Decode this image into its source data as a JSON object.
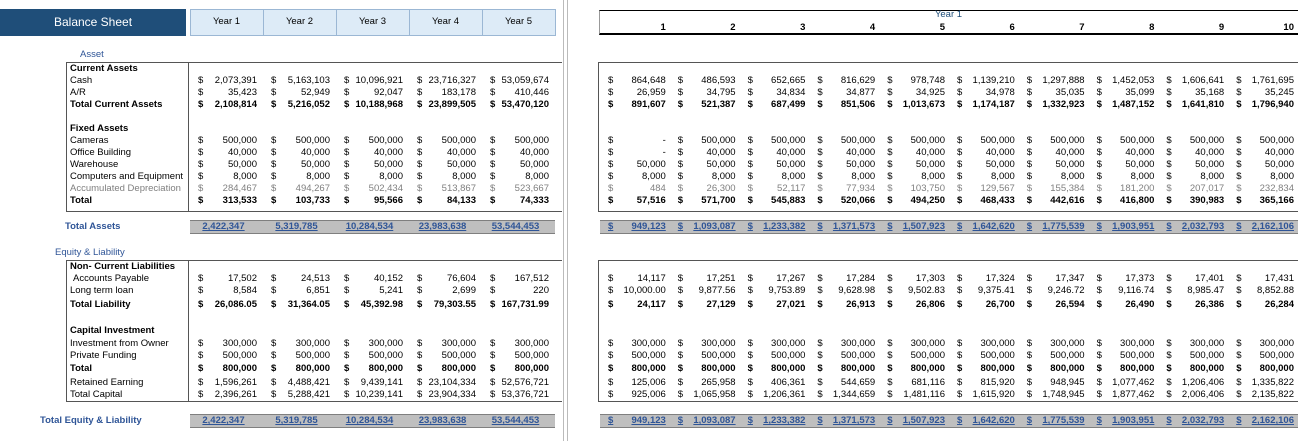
{
  "currency": "$",
  "left": {
    "title": "Balance Sheet",
    "columns": [
      "Year 1",
      "Year 2",
      "Year 3",
      "Year 4",
      "Year 5"
    ],
    "rows": [
      {
        "label": "Asset"
      },
      {
        "label": "Current Assets"
      },
      {
        "label": "Cash",
        "values": [
          "2,073,391",
          "5,163,103",
          "10,096,921",
          "23,716,327",
          "53,059,674"
        ]
      },
      {
        "label": "A/R",
        "values": [
          "35,423",
          "52,949",
          "92,047",
          "183,178",
          "410,446"
        ]
      },
      {
        "label": "Total Current Assets",
        "values": [
          "2,108,814",
          "5,216,052",
          "10,188,968",
          "23,899,505",
          "53,470,120"
        ]
      },
      {
        "label": "Fixed Assets"
      },
      {
        "label": "Cameras",
        "values": [
          "500,000",
          "500,000",
          "500,000",
          "500,000",
          "500,000"
        ]
      },
      {
        "label": "Office Building",
        "values": [
          "40,000",
          "40,000",
          "40,000",
          "40,000",
          "40,000"
        ]
      },
      {
        "label": "Warehouse",
        "values": [
          "50,000",
          "50,000",
          "50,000",
          "50,000",
          "50,000"
        ]
      },
      {
        "label": "Computers and Equipment",
        "values": [
          "8,000",
          "8,000",
          "8,000",
          "8,000",
          "8,000"
        ]
      },
      {
        "label": "Accumulated Depreciation",
        "values": [
          "284,467",
          "494,267",
          "502,434",
          "513,867",
          "523,667"
        ]
      },
      {
        "label": "Total",
        "values": [
          "313,533",
          "103,733",
          "95,566",
          "84,133",
          "74,333"
        ]
      },
      {
        "label": "Total Assets",
        "values": [
          "2,422,347",
          "5,319,785",
          "10,284,534",
          "23,983,638",
          "53,544,453"
        ]
      },
      {
        "label": "Equity & Liability"
      },
      {
        "label": "Non- Current Liabilities"
      },
      {
        "label": "Accounts Payable",
        "values": [
          "17,502",
          "24,513",
          "40,152",
          "76,604",
          "167,512"
        ]
      },
      {
        "label": "Long term loan",
        "values": [
          "8,584",
          "6,851",
          "5,241",
          "2,699",
          "220"
        ]
      },
      {
        "label": "Total Liability",
        "values": [
          "26,086.05",
          "31,364.05",
          "45,392.98",
          "79,303.55",
          "167,731.99"
        ]
      },
      {
        "label": "Capital Investment"
      },
      {
        "label": "Investment from Owner",
        "values": [
          "300,000",
          "300,000",
          "300,000",
          "300,000",
          "300,000"
        ]
      },
      {
        "label": "Private Funding",
        "values": [
          "500,000",
          "500,000",
          "500,000",
          "500,000",
          "500,000"
        ]
      },
      {
        "label": "Total",
        "values": [
          "800,000",
          "800,000",
          "800,000",
          "800,000",
          "800,000"
        ]
      },
      {
        "label": "Retained Earning",
        "values": [
          "1,596,261",
          "4,488,421",
          "9,439,141",
          "23,104,334",
          "52,576,721"
        ]
      },
      {
        "label": "Total Capital",
        "values": [
          "2,396,261",
          "5,288,421",
          "10,239,141",
          "23,904,334",
          "53,376,721"
        ]
      },
      {
        "label": "Total Equity & Liability",
        "values": [
          "2,422,347",
          "5,319,785",
          "10,284,534",
          "23,983,638",
          "53,544,453"
        ]
      }
    ]
  },
  "right": {
    "group": "Year 1",
    "columns": [
      "1",
      "2",
      "3",
      "4",
      "5",
      "6",
      "7",
      "8",
      "9",
      "10"
    ],
    "rows": [
      [
        "864,648",
        "486,593",
        "652,665",
        "816,629",
        "978,748",
        "1,139,210",
        "1,297,888",
        "1,452,053",
        "1,606,641",
        "1,761,695"
      ],
      [
        "26,959",
        "34,795",
        "34,834",
        "34,877",
        "34,925",
        "34,978",
        "35,035",
        "35,099",
        "35,168",
        "35,245"
      ],
      [
        "891,607",
        "521,387",
        "687,499",
        "851,506",
        "1,013,673",
        "1,174,187",
        "1,332,923",
        "1,487,152",
        "1,641,810",
        "1,796,940"
      ],
      [
        "-",
        "500,000",
        "500,000",
        "500,000",
        "500,000",
        "500,000",
        "500,000",
        "500,000",
        "500,000",
        "500,000"
      ],
      [
        "-",
        "40,000",
        "40,000",
        "40,000",
        "40,000",
        "40,000",
        "40,000",
        "40,000",
        "40,000",
        "40,000"
      ],
      [
        "50,000",
        "50,000",
        "50,000",
        "50,000",
        "50,000",
        "50,000",
        "50,000",
        "50,000",
        "50,000",
        "50,000"
      ],
      [
        "8,000",
        "8,000",
        "8,000",
        "8,000",
        "8,000",
        "8,000",
        "8,000",
        "8,000",
        "8,000",
        "8,000"
      ],
      [
        "484",
        "26,300",
        "52,117",
        "77,934",
        "103,750",
        "129,567",
        "155,384",
        "181,200",
        "207,017",
        "232,834"
      ],
      [
        "57,516",
        "571,700",
        "545,883",
        "520,066",
        "494,250",
        "468,433",
        "442,616",
        "416,800",
        "390,983",
        "365,166"
      ],
      [
        "949,123",
        "1,093,087",
        "1,233,382",
        "1,371,573",
        "1,507,923",
        "1,642,620",
        "1,775,539",
        "1,903,951",
        "2,032,793",
        "2,162,106"
      ],
      [
        "14,117",
        "17,251",
        "17,267",
        "17,284",
        "17,303",
        "17,324",
        "17,347",
        "17,373",
        "17,401",
        "17,431"
      ],
      [
        "10,000.00",
        "9,877.56",
        "9,753.89",
        "9,628.98",
        "9,502.83",
        "9,375.41",
        "9,246.72",
        "9,116.74",
        "8,985.47",
        "8,852.88"
      ],
      [
        "24,117",
        "27,129",
        "27,021",
        "26,913",
        "26,806",
        "26,700",
        "26,594",
        "26,490",
        "26,386",
        "26,284"
      ],
      [
        "300,000",
        "300,000",
        "300,000",
        "300,000",
        "300,000",
        "300,000",
        "300,000",
        "300,000",
        "300,000",
        "300,000"
      ],
      [
        "500,000",
        "500,000",
        "500,000",
        "500,000",
        "500,000",
        "500,000",
        "500,000",
        "500,000",
        "500,000",
        "500,000"
      ],
      [
        "800,000",
        "800,000",
        "800,000",
        "800,000",
        "800,000",
        "800,000",
        "800,000",
        "800,000",
        "800,000",
        "800,000"
      ],
      [
        "125,006",
        "265,958",
        "406,361",
        "544,659",
        "681,116",
        "815,920",
        "948,945",
        "1,077,462",
        "1,206,406",
        "1,335,822"
      ],
      [
        "925,006",
        "1,065,958",
        "1,206,361",
        "1,344,659",
        "1,481,116",
        "1,615,920",
        "1,748,945",
        "1,877,462",
        "2,006,406",
        "2,135,822"
      ],
      [
        "949,123",
        "1,093,087",
        "1,233,382",
        "1,371,573",
        "1,507,923",
        "1,642,620",
        "1,775,539",
        "1,903,951",
        "2,032,793",
        "2,162,106"
      ]
    ]
  }
}
